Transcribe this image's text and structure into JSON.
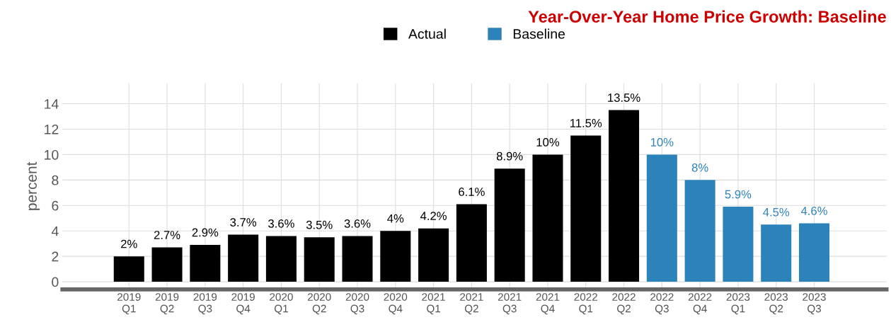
{
  "chart_data": {
    "type": "bar",
    "title": "Year-Over-Year Home Price Growth: Baseline",
    "ylabel": "percent",
    "categories": [
      "2019\nQ1",
      "2019\nQ2",
      "2019\nQ3",
      "2019\nQ4",
      "2020\nQ1",
      "2020\nQ2",
      "2020\nQ3",
      "2020\nQ4",
      "2021\nQ1",
      "2021\nQ2",
      "2021\nQ3",
      "2021\nQ4",
      "2022\nQ1",
      "2022\nQ2",
      "2022\nQ3",
      "2022\nQ4",
      "2023\nQ1",
      "2023\nQ2",
      "2023\nQ3"
    ],
    "series": [
      {
        "name": "Actual",
        "color": "#000000",
        "values": [
          2,
          2.7,
          2.9,
          3.7,
          3.6,
          3.5,
          3.6,
          4,
          4.2,
          6.1,
          8.9,
          10,
          11.5,
          13.5,
          null,
          null,
          null,
          null,
          null
        ],
        "value_labels": [
          "2%",
          "2.7%",
          "2.9%",
          "3.7%",
          "3.6%",
          "3.5%",
          "3.6%",
          "4%",
          "4.2%",
          "6.1%",
          "8.9%",
          "10%",
          "11.5%",
          "13.5%",
          null,
          null,
          null,
          null,
          null
        ]
      },
      {
        "name": "Baseline",
        "color": "#2b83ba",
        "values": [
          null,
          null,
          null,
          null,
          null,
          null,
          null,
          null,
          null,
          null,
          null,
          null,
          null,
          null,
          10,
          8,
          5.9,
          4.5,
          4.6
        ],
        "value_labels": [
          null,
          null,
          null,
          null,
          null,
          null,
          null,
          null,
          null,
          null,
          null,
          null,
          null,
          null,
          "10%",
          "8%",
          "5.9%",
          "4.5%",
          "4.6%"
        ]
      }
    ],
    "ylim": [
      -0.6,
      15.6
    ],
    "yticks": [
      0,
      2,
      4,
      6,
      8,
      10,
      12,
      14
    ],
    "grid": true,
    "legend": "top"
  }
}
